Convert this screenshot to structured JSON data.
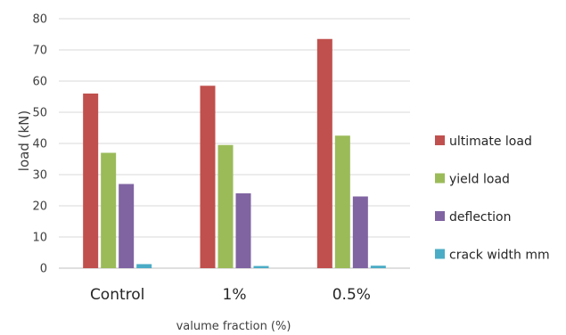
{
  "chart_data": {
    "type": "bar",
    "title": "",
    "xlabel": "valume fraction (%)",
    "ylabel": "load (kN)",
    "categories": [
      "Control",
      "1%",
      "0.5%"
    ],
    "ylim": [
      0,
      80
    ],
    "yticks": [
      0,
      10,
      20,
      30,
      40,
      50,
      60,
      70,
      80
    ],
    "grid": true,
    "legend_position": "right",
    "series": [
      {
        "name": "ultimate load",
        "color": "#c0504d",
        "values": [
          56,
          58.5,
          73.5
        ]
      },
      {
        "name": "yield load",
        "color": "#9bbb59",
        "values": [
          37,
          39.5,
          42.5
        ]
      },
      {
        "name": "deflection",
        "color": "#8064a2",
        "values": [
          27,
          24,
          23
        ]
      },
      {
        "name": "crack width mm",
        "color": "#4bacc6",
        "values": [
          1.3,
          0.7,
          0.8
        ]
      }
    ]
  }
}
